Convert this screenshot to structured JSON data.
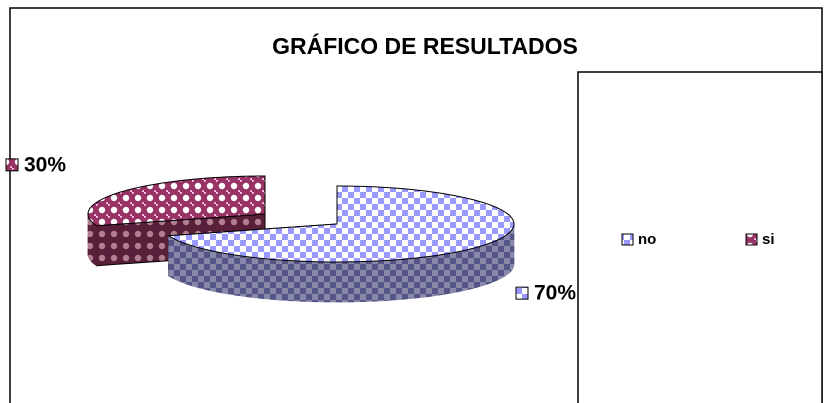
{
  "chart_data": {
    "type": "pie3d",
    "title": "GRÁFICO DE RESULTADOS",
    "categories": [
      "no",
      "si"
    ],
    "values": [
      70,
      30
    ],
    "value_labels": [
      "70%",
      "30%"
    ],
    "colors": [
      "#9999ff",
      "#993366"
    ],
    "legend": "right"
  }
}
